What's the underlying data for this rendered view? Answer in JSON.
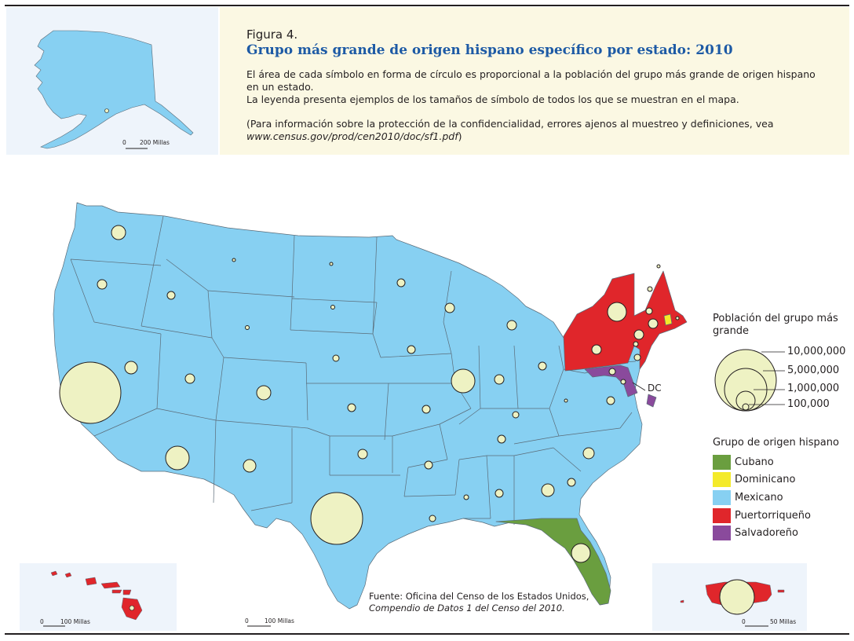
{
  "figure": {
    "label": "Figura 4.",
    "title": "Grupo más grande de origen hispano específico por estado: 2010",
    "desc_line1": "El área de cada símbolo en forma de círculo es proporcional a la población del grupo más grande de origen hispano en un estado.",
    "desc_line2": "La leyenda presenta ejemplos de los tamaños de símbolo de todos los que se muestran en el mapa.",
    "note_prefix": "(Para información sobre la protección de la confidencialidad, errores ajenos al muestreo y definiciones, vea ",
    "note_url": "www.census.gov/prod/cen2010/doc/sf1.pdf",
    "note_suffix": ")"
  },
  "scales": {
    "alaska": "200 Millas",
    "hawaii": "100 Millas",
    "mainland": "100 Millas",
    "puerto_rico": "50 Millas",
    "zero": "0"
  },
  "legend": {
    "size_title": "Población del grupo más grande",
    "sizes": [
      "10,000,000",
      "5,000,000",
      "1,000,000",
      "100,000"
    ],
    "group_title": "Grupo de origen hispano",
    "groups": [
      {
        "label": "Cubano",
        "color": "#6a9e3f"
      },
      {
        "label": "Dominicano",
        "color": "#f4ea2a"
      },
      {
        "label": "Mexicano",
        "color": "#87d0f2"
      },
      {
        "label": "Puertorriqueño",
        "color": "#e0262b"
      },
      {
        "label": "Salvadoreño",
        "color": "#8a4a9c"
      }
    ]
  },
  "labels": {
    "dc": "DC"
  },
  "source": {
    "line1": "Fuente: Oficina del Censo de los Estados Unidos,",
    "line2": "Compendio de Datos 1 del Censo del 2010."
  },
  "colors": {
    "mexicano": "#87d0f2",
    "puertorriqueno": "#e0262b",
    "cubano": "#6a9e3f",
    "dominicano": "#f4ea2a",
    "salvadoreno": "#8a4a9c",
    "circle_fill": "#eef2c3",
    "title_blue": "#1d5aa5"
  }
}
